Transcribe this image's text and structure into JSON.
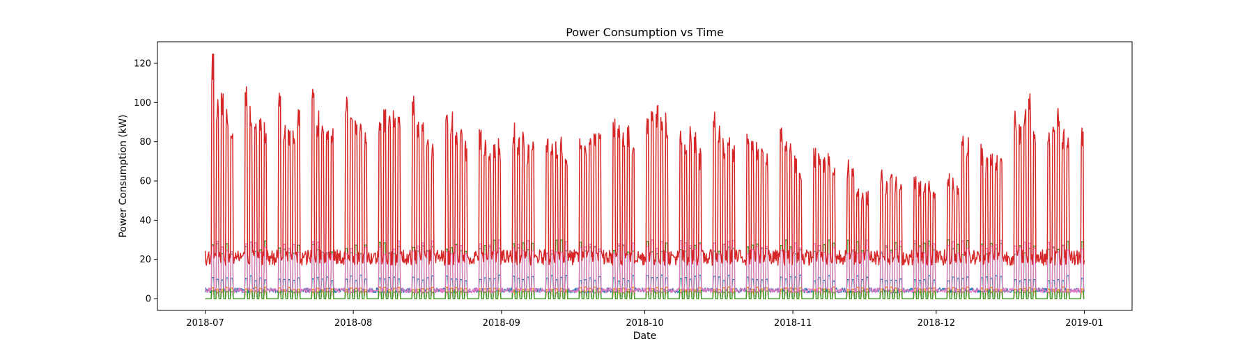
{
  "chart_data": {
    "type": "line",
    "title": "Power Consumption vs Time",
    "xlabel": "Date",
    "ylabel": "Power Consumption (kW)",
    "x_range": [
      "2018-06-21",
      "2019-01-11"
    ],
    "ylim": [
      -6,
      131
    ],
    "x_ticks": [
      "2018-07",
      "2018-08",
      "2018-09",
      "2018-10",
      "2018-11",
      "2018-12",
      "2019-01"
    ],
    "y_ticks": [
      0,
      20,
      40,
      60,
      80,
      100,
      120
    ],
    "grid": false,
    "legend": "none",
    "series": [
      {
        "color": "#d62728",
        "data_start": "2018-07-01",
        "data_end": "2019-01-01",
        "weekday_peaks": [
          126,
          105,
          108,
          100,
          95,
          108,
          101,
          92,
          92,
          90,
          107,
          92,
          88,
          90,
          98,
          111,
          97,
          97,
          94,
          92,
          104,
          105,
          91,
          96,
          86,
          98,
          98,
          97,
          96,
          94,
          109,
          93,
          92,
          90,
          80,
          103,
          98,
          92,
          91,
          82,
          88,
          86,
          77,
          79,
          82,
          90,
          86,
          85,
          79,
          82,
          83,
          82,
          80,
          84,
          76,
          87,
          85,
          88,
          89,
          85,
          93,
          94,
          90,
          89,
          85,
          97,
          100,
          99,
          98,
          95,
          88,
          81,
          88,
          86,
          77,
          97,
          90,
          82,
          85,
          80,
          92,
          82,
          80,
          79,
          74,
          91,
          84,
          81,
          75,
          70,
          77,
          76,
          73,
          75,
          70,
          71,
          68,
          59,
          58,
          56,
          67,
          62,
          70,
          63,
          59,
          63,
          61,
          59,
          63,
          58,
          65,
          62,
          60,
          88,
          83,
          80,
          73,
          77,
          75,
          78,
          96,
          92,
          101,
          106,
          93,
          86,
          90,
          99,
          88,
          82,
          90,
          85,
          83,
          80,
          82,
          95,
          90,
          85,
          80,
          79
        ],
        "base_level": 20
      },
      {
        "color": "#e377c2",
        "data_start": "2018-07-01",
        "data_end": "2019-01-01",
        "peak_level": 30,
        "base_level": 5
      },
      {
        "color": "#2ca02c",
        "data_start": "2018-07-01",
        "data_end": "2019-01-01",
        "peak_level": 30,
        "base_level": 0
      },
      {
        "color": "#1f77b4",
        "data_start": "2018-07-01",
        "data_end": "2019-01-01",
        "peak_level": 12,
        "base_level": 5
      },
      {
        "color": "#ff7f0e",
        "data_start": "2018-07-01",
        "data_end": "2019-01-01",
        "peak_level": 6,
        "base_level": 0
      },
      {
        "color": "#9467bd",
        "data_start": "2018-07-01",
        "data_end": "2019-01-01",
        "peak_level": 4,
        "base_level": 0
      },
      {
        "color": "#bcbd22",
        "data_start": "2018-07-01",
        "data_end": "2019-01-01",
        "peak_level": 4,
        "base_level": 0
      }
    ]
  }
}
